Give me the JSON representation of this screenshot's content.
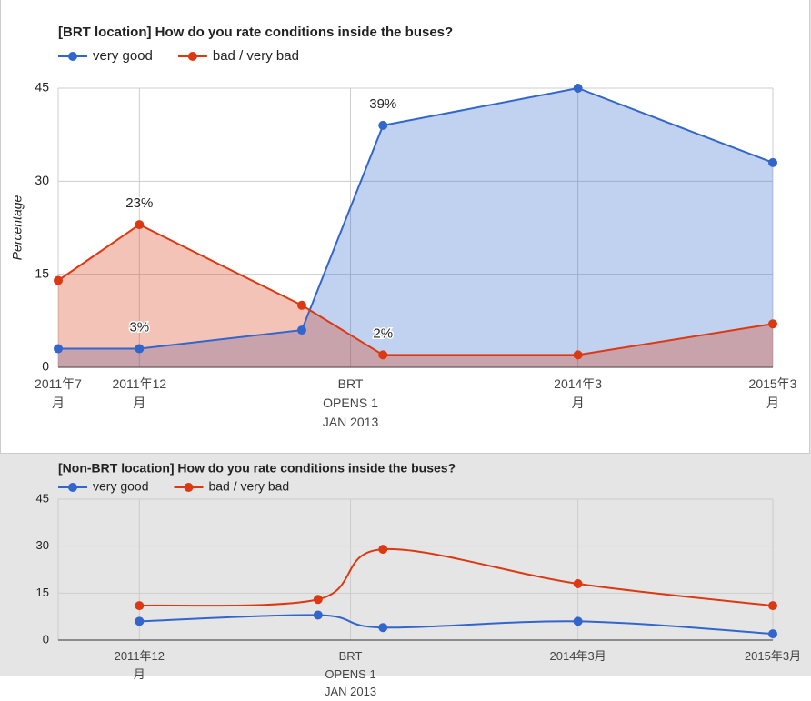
{
  "chart_data": [
    {
      "type": "area",
      "title": "[BRT location] How do you rate conditions inside the buses?",
      "ylabel": "Percentage",
      "x": [
        "2011-07",
        "2011-12",
        "2012-10",
        "2013-03",
        "2014-03",
        "2015-03"
      ],
      "series": [
        {
          "name": "very good",
          "color": "#3366cc",
          "values": [
            3,
            3,
            6,
            39,
            45,
            33
          ],
          "value_labels": [
            null,
            "3%",
            null,
            "39%",
            null,
            null
          ]
        },
        {
          "name": "bad / very bad",
          "color": "#dc3912",
          "values": [
            14,
            23,
            10,
            2,
            2,
            7
          ],
          "value_labels": [
            null,
            "23%",
            null,
            "2%",
            null,
            null
          ]
        }
      ],
      "xlim": [
        "2011-07",
        "2015-03"
      ],
      "xticks": [
        {
          "value": "2011-07",
          "label": "2011年7月"
        },
        {
          "value": "2011-12",
          "label": "2011年12月"
        },
        {
          "value": "2013-01",
          "label": "BRT OPENS 1 JAN 2013"
        },
        {
          "value": "2014-03",
          "label": "2014年3月"
        },
        {
          "value": "2015-03",
          "label": "2015年3月"
        }
      ],
      "ylim": [
        0,
        45
      ],
      "yticks": [
        0,
        15,
        30,
        45
      ],
      "grid": true
    },
    {
      "type": "line",
      "smooth": true,
      "title": "[Non-BRT location] How do you rate conditions inside the buses?",
      "x": [
        "2011-12",
        "2012-11",
        "2013-03",
        "2014-03",
        "2015-03"
      ],
      "series": [
        {
          "name": "very good",
          "color": "#3366cc",
          "values": [
            6,
            8,
            4,
            6,
            2
          ]
        },
        {
          "name": "bad / very bad",
          "color": "#dc3912",
          "values": [
            11,
            13,
            29,
            18,
            11
          ]
        }
      ],
      "xlim": [
        "2011-07",
        "2015-03"
      ],
      "xticks": [
        {
          "value": "2011-12",
          "label": "2011年12月"
        },
        {
          "value": "2013-01",
          "label": "BRT OPENS 1 JAN 2013"
        },
        {
          "value": "2014-03",
          "label": "2014年3月"
        },
        {
          "value": "2015-03",
          "label": "2015年3月"
        }
      ],
      "ylim": [
        0,
        45
      ],
      "yticks": [
        0,
        15,
        30,
        45
      ],
      "grid": true
    }
  ]
}
